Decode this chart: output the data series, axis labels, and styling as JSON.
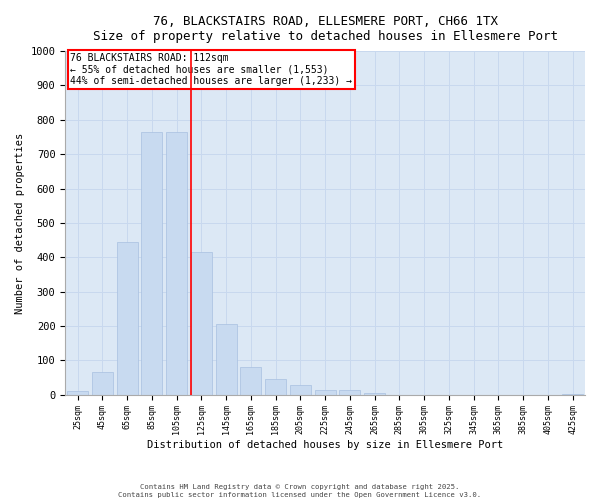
{
  "title_line1": "76, BLACKSTAIRS ROAD, ELLESMERE PORT, CH66 1TX",
  "title_line2": "Size of property relative to detached houses in Ellesmere Port",
  "xlabel": "Distribution of detached houses by size in Ellesmere Port",
  "ylabel": "Number of detached properties",
  "bar_color": "#c8daf0",
  "bar_edgecolor": "#a8c0e0",
  "grid_color": "#c8d8ee",
  "bg_color": "#dce8f5",
  "fig_color": "#ffffff",
  "categories": [
    "25sqm",
    "45sqm",
    "65sqm",
    "85sqm",
    "105sqm",
    "125sqm",
    "145sqm",
    "165sqm",
    "185sqm",
    "205sqm",
    "225sqm",
    "245sqm",
    "265sqm",
    "285sqm",
    "305sqm",
    "325sqm",
    "345sqm",
    "365sqm",
    "385sqm",
    "405sqm",
    "425sqm"
  ],
  "values": [
    10,
    65,
    445,
    765,
    765,
    415,
    205,
    80,
    47,
    28,
    13,
    13,
    5,
    0,
    0,
    0,
    0,
    0,
    0,
    0,
    3
  ],
  "property_label": "76 BLACKSTAIRS ROAD: 112sqm",
  "annotation_line1": "← 55% of detached houses are smaller (1,553)",
  "annotation_line2": "44% of semi-detached houses are larger (1,233) →",
  "vline_x_index": 4.6,
  "ylim": [
    0,
    1000
  ],
  "yticks": [
    0,
    100,
    200,
    300,
    400,
    500,
    600,
    700,
    800,
    900,
    1000
  ],
  "footer_line1": "Contains HM Land Registry data © Crown copyright and database right 2025.",
  "footer_line2": "Contains public sector information licensed under the Open Government Licence v3.0."
}
